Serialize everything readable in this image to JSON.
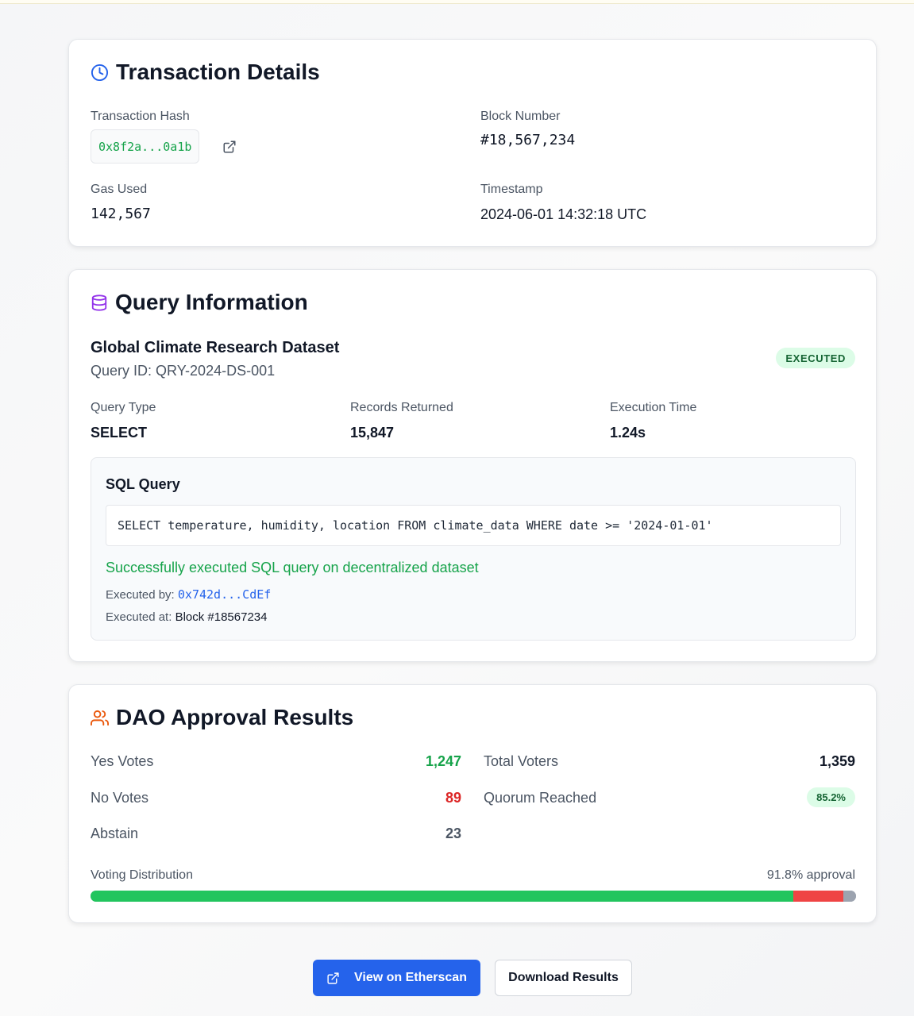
{
  "transaction": {
    "title": "Transaction Details",
    "hash_label": "Transaction Hash",
    "hash_value": "0x8f2a...0a1b",
    "block_label": "Block Number",
    "block_value": "#18,567,234",
    "gas_label": "Gas Used",
    "gas_value": "142,567",
    "timestamp_label": "Timestamp",
    "timestamp_value": "2024-06-01 14:32:18 UTC"
  },
  "query": {
    "title": "Query Information",
    "dataset_name": "Global Climate Research Dataset",
    "query_id": "Query ID: QRY-2024-DS-001",
    "status_badge": "EXECUTED",
    "type_label": "Query Type",
    "type_value": "SELECT",
    "records_label": "Records Returned",
    "records_value": "15,847",
    "time_label": "Execution Time",
    "time_value": "1.24s",
    "sql_title": "SQL Query",
    "sql_text": "SELECT temperature, humidity, location FROM climate_data WHERE date >= '2024-01-01'",
    "success_message": "Successfully executed SQL query on decentralized dataset",
    "executed_by_label": "Executed by:",
    "executed_by_value": "0x742d...CdEf",
    "executed_at_label": "Executed at:",
    "executed_at_value": "Block #18567234"
  },
  "dao": {
    "title": "DAO Approval Results",
    "yes_label": "Yes Votes",
    "yes_value": "1,247",
    "no_label": "No Votes",
    "no_value": "89",
    "abstain_label": "Abstain",
    "abstain_value": "23",
    "total_label": "Total Voters",
    "total_value": "1,359",
    "quorum_label": "Quorum Reached",
    "quorum_value": "85.2%",
    "distribution_label": "Voting Distribution",
    "approval_text": "91.8% approval",
    "distribution": {
      "yes": 1247,
      "no": 89,
      "abstain": 23
    }
  },
  "actions": {
    "etherscan_label": "View on Etherscan",
    "download_label": "Download Results"
  },
  "colors": {
    "yes": "#16a34a",
    "no": "#dc2626",
    "abstain": "#9ca3af",
    "bar_yes": "#22c55e",
    "bar_no": "#ef4444",
    "primary": "#2563eb"
  },
  "icons": {
    "transaction": "clock-icon",
    "query": "database-icon",
    "dao": "users-icon",
    "external": "external-link-icon"
  }
}
